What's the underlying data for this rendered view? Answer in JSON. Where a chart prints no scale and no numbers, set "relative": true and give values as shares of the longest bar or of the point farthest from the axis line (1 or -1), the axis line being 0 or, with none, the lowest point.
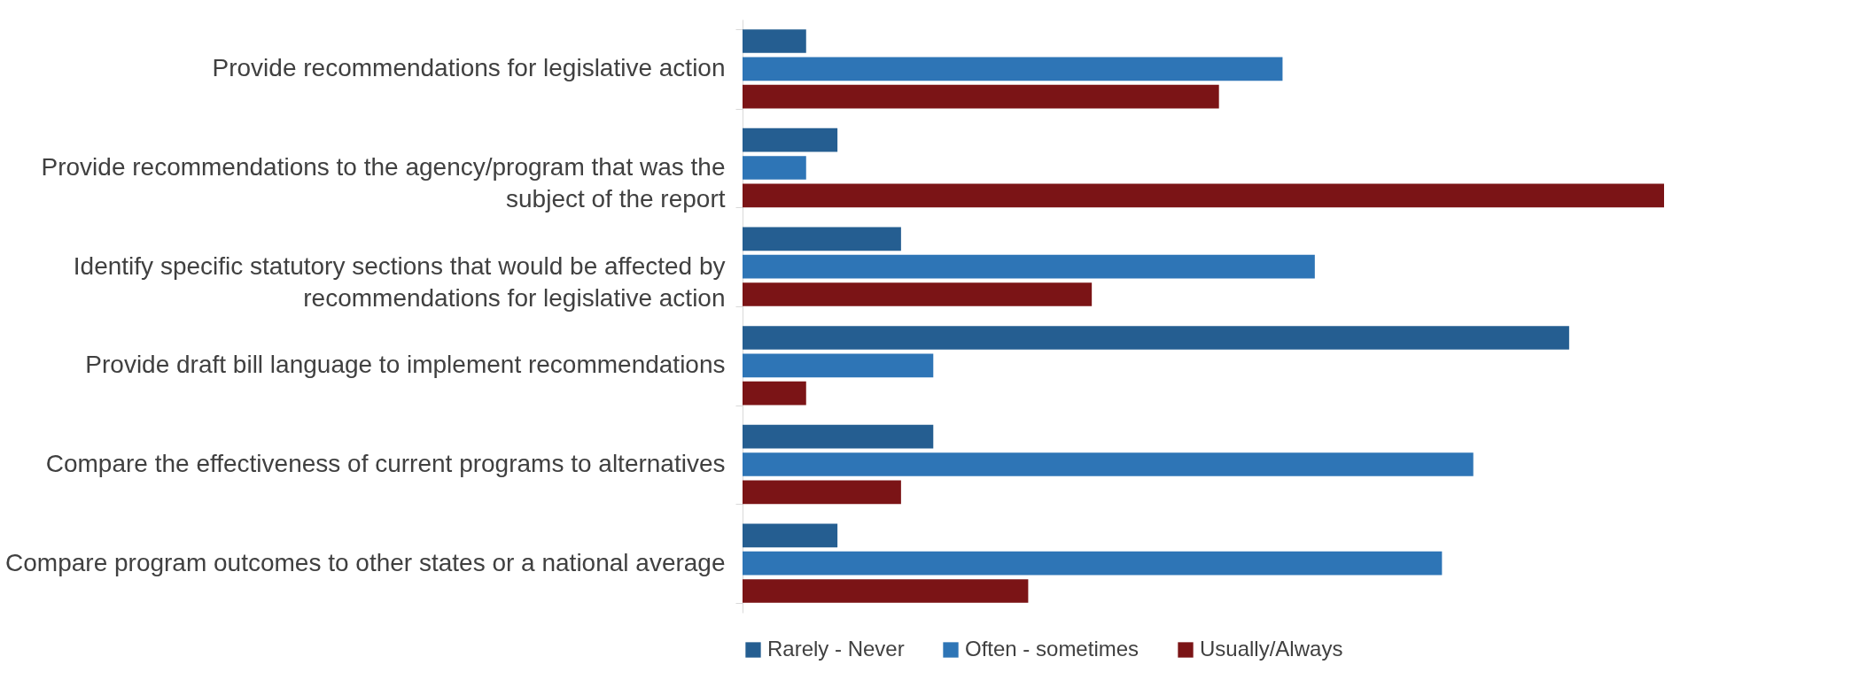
{
  "chart_data": {
    "type": "bar",
    "orientation": "horizontal",
    "relative": true,
    "legend": "bottom",
    "categories": [
      "Provide recommendations for legislative action",
      "Provide recommendations to the agency/program that was the subject of the report",
      "Identify specific statutory sections that would be affected by recommendations for legislative action",
      "Provide draft bill language to implement recommendations",
      "Compare the effectiveness of current programs to alternatives",
      "Compare program outcomes to other states or a national average"
    ],
    "series": [
      {
        "name": "Rarely - Never",
        "color": "#255e91",
        "values": [
          0.069,
          0.103,
          0.172,
          0.897,
          0.207,
          0.103
        ]
      },
      {
        "name": "Often - sometimes",
        "color": "#2e75b6",
        "values": [
          0.586,
          0.069,
          0.621,
          0.207,
          0.793,
          0.759
        ]
      },
      {
        "name": "Usually/Always",
        "color": "#7b1416",
        "values": [
          0.517,
          1,
          0.379,
          0.069,
          0.172,
          0.31
        ]
      }
    ]
  }
}
